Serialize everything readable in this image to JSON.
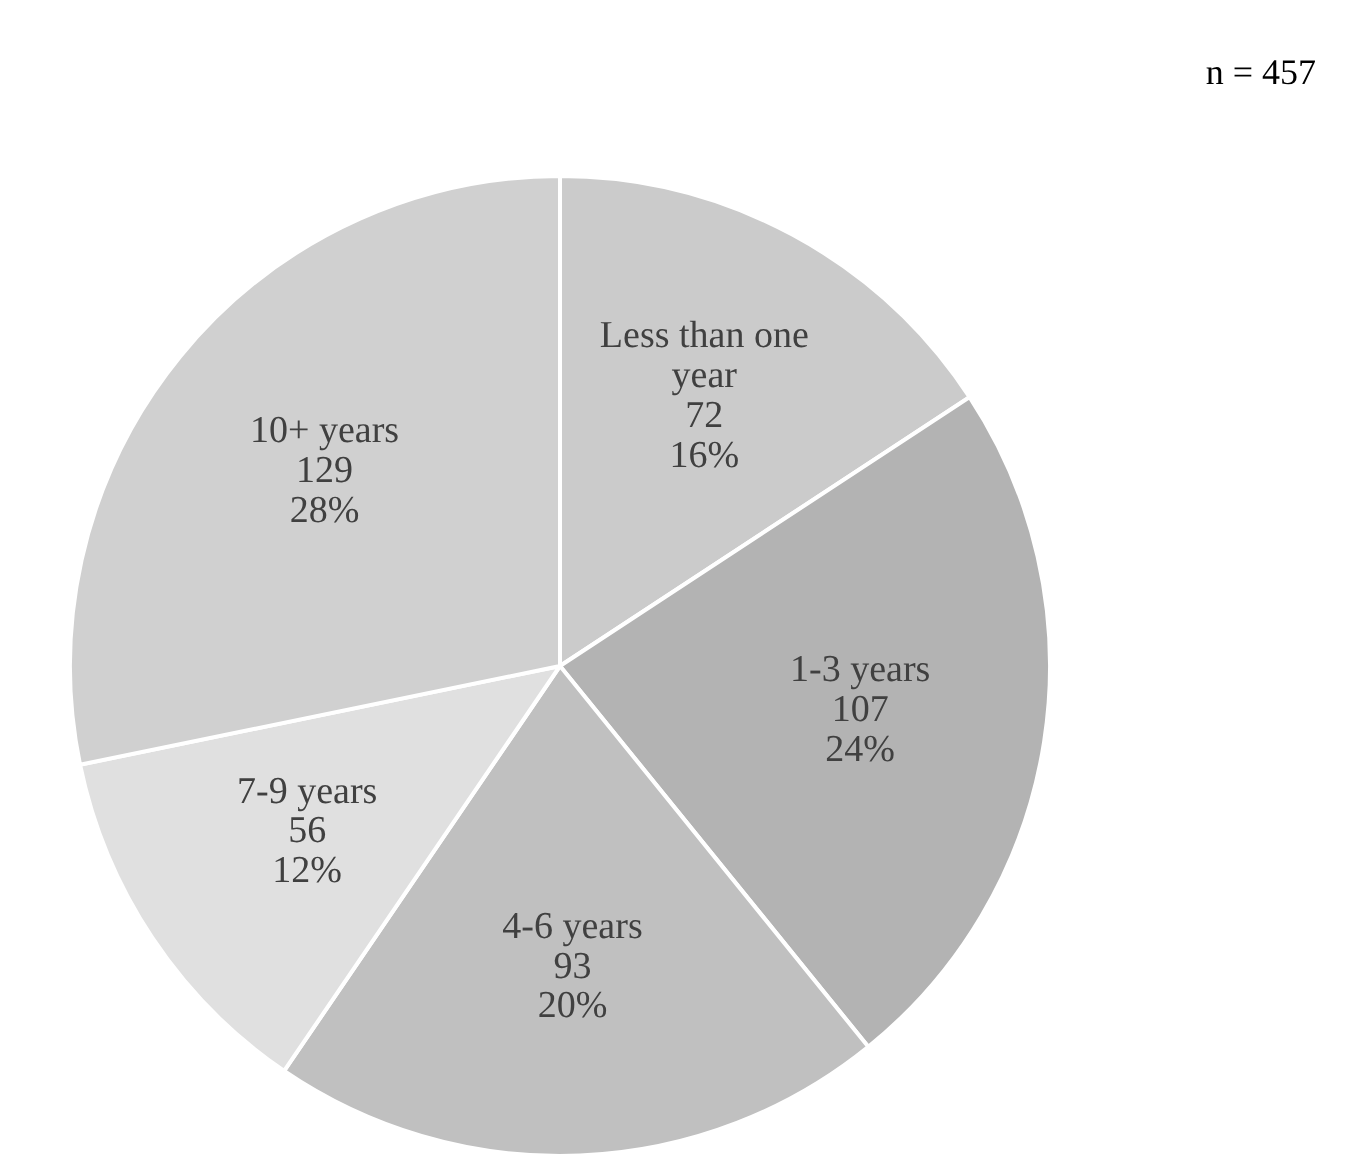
{
  "chart_data": {
    "type": "pie",
    "categories": [
      "Less than one year",
      "1-3 years",
      "4-6 years",
      "7-9 years",
      "10+ years"
    ],
    "values": [
      72,
      107,
      93,
      56,
      129
    ],
    "value_labels": [
      "72\n16%",
      "107\n24%",
      "93\n20%",
      "56\n12%",
      "129\n28%"
    ],
    "colors": [
      "#cbcbcb",
      "#b3b3b3",
      "#c0c0c0",
      "#e0e0e0",
      "#d0d0d0"
    ],
    "annotations": [
      "n = 457"
    ]
  }
}
